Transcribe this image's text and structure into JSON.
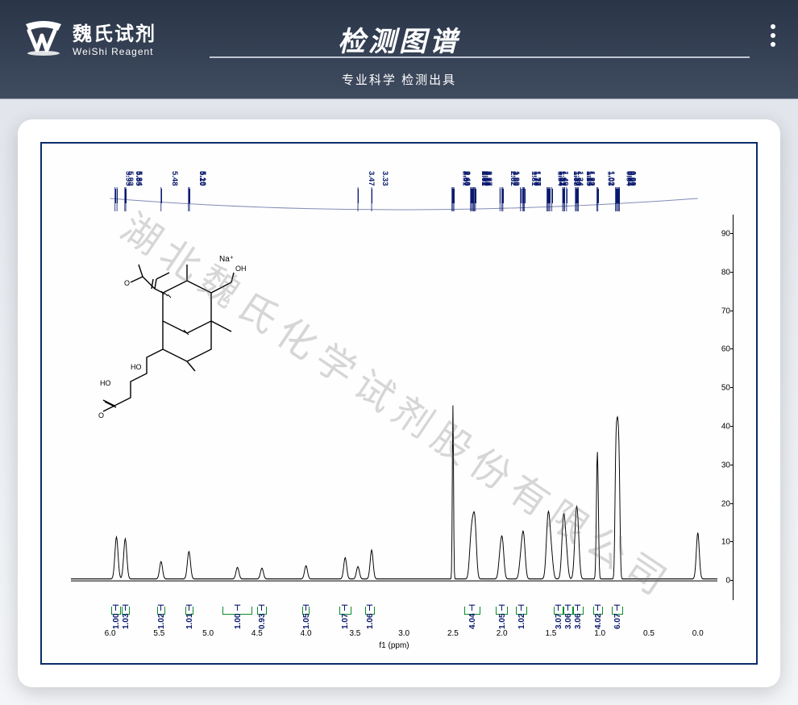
{
  "brand": {
    "cn": "魏氏试剂",
    "en": "WeiShi Reagent"
  },
  "header": {
    "title": "检测图谱",
    "subtitle": "专业科学  检测出具"
  },
  "watermark": "湖北魏氏化学试剂股份有限公司",
  "nmr": {
    "type": "1H-NMR",
    "x_label": "f1 (ppm)",
    "xlim_ppm": [
      6.4,
      -0.2
    ],
    "ylim": [
      -5,
      95
    ],
    "y_ticks": [
      0,
      10,
      20,
      30,
      40,
      50,
      60,
      70,
      80,
      90
    ],
    "x_ticks": [
      6.0,
      5.5,
      5.0,
      4.5,
      4.0,
      3.5,
      3.0,
      2.5,
      2.0,
      1.5,
      1.0,
      0.5,
      0.0
    ],
    "peak_labels_ppm": [
      5.95,
      5.93,
      5.85,
      5.84,
      5.48,
      5.2,
      5.19,
      3.47,
      3.33,
      2.51,
      2.5,
      2.5,
      2.49,
      2.32,
      2.31,
      2.3,
      2.3,
      2.29,
      2.28,
      2.27,
      2.02,
      2.02,
      2.0,
      1.99,
      1.81,
      1.79,
      1.78,
      1.77,
      1.54,
      1.53,
      1.53,
      1.52,
      1.51,
      1.49,
      1.38,
      1.37,
      1.37,
      1.36,
      1.36,
      1.34,
      1.25,
      1.25,
      1.24,
      1.23,
      1.22,
      1.22,
      1.03,
      1.02,
      0.84,
      0.83,
      0.82,
      0.82,
      0.81,
      0.8
    ],
    "integrals": [
      {
        "ppm_center": 5.94,
        "width_ppm": 0.1,
        "value": "1.00"
      },
      {
        "ppm_center": 5.84,
        "width_ppm": 0.08,
        "value": "1.03"
      },
      {
        "ppm_center": 5.48,
        "width_ppm": 0.08,
        "value": "1.02"
      },
      {
        "ppm_center": 5.19,
        "width_ppm": 0.08,
        "value": "1.01"
      },
      {
        "ppm_center": 4.7,
        "width_ppm": 0.3,
        "value": "1.00"
      },
      {
        "ppm_center": 4.45,
        "width_ppm": 0.1,
        "value": "0.93"
      },
      {
        "ppm_center": 4.0,
        "width_ppm": 0.08,
        "value": "1.05"
      },
      {
        "ppm_center": 3.6,
        "width_ppm": 0.12,
        "value": "1.07"
      },
      {
        "ppm_center": 3.35,
        "width_ppm": 0.1,
        "value": "1.06"
      },
      {
        "ppm_center": 2.3,
        "width_ppm": 0.16,
        "value": "4.04"
      },
      {
        "ppm_center": 2.0,
        "width_ppm": 0.12,
        "value": "1.05"
      },
      {
        "ppm_center": 1.8,
        "width_ppm": 0.12,
        "value": "1.02"
      },
      {
        "ppm_center": 1.42,
        "width_ppm": 0.1,
        "value": "3.07"
      },
      {
        "ppm_center": 1.32,
        "width_ppm": 0.1,
        "value": "3.06"
      },
      {
        "ppm_center": 1.22,
        "width_ppm": 0.1,
        "value": "3.06"
      },
      {
        "ppm_center": 1.02,
        "width_ppm": 0.1,
        "value": "4.02"
      },
      {
        "ppm_center": 0.82,
        "width_ppm": 0.12,
        "value": "6.07"
      }
    ],
    "spectrum_peaks": [
      {
        "ppm": 5.94,
        "h": 6
      },
      {
        "ppm": 5.93,
        "h": 5.5
      },
      {
        "ppm": 5.85,
        "h": 6
      },
      {
        "ppm": 5.84,
        "h": 5
      },
      {
        "ppm": 5.48,
        "h": 4.5
      },
      {
        "ppm": 5.2,
        "h": 4
      },
      {
        "ppm": 5.19,
        "h": 3.5
      },
      {
        "ppm": 4.7,
        "h": 3
      },
      {
        "ppm": 4.45,
        "h": 2.8
      },
      {
        "ppm": 4.0,
        "h": 3.4
      },
      {
        "ppm": 3.6,
        "h": 5.5
      },
      {
        "ppm": 3.47,
        "h": 3.2
      },
      {
        "ppm": 3.33,
        "h": 7.5
      },
      {
        "ppm": 2.5,
        "h": 45
      },
      {
        "ppm": 2.32,
        "h": 7
      },
      {
        "ppm": 2.3,
        "h": 9
      },
      {
        "ppm": 2.28,
        "h": 8
      },
      {
        "ppm": 2.27,
        "h": 6.5
      },
      {
        "ppm": 2.02,
        "h": 5
      },
      {
        "ppm": 2.0,
        "h": 5.5
      },
      {
        "ppm": 1.99,
        "h": 4.5
      },
      {
        "ppm": 1.81,
        "h": 4
      },
      {
        "ppm": 1.79,
        "h": 5
      },
      {
        "ppm": 1.78,
        "h": 4.5
      },
      {
        "ppm": 1.77,
        "h": 4
      },
      {
        "ppm": 1.54,
        "h": 5.5
      },
      {
        "ppm": 1.53,
        "h": 6
      },
      {
        "ppm": 1.52,
        "h": 5.5
      },
      {
        "ppm": 1.51,
        "h": 5
      },
      {
        "ppm": 1.49,
        "h": 4.5
      },
      {
        "ppm": 1.38,
        "h": 6
      },
      {
        "ppm": 1.37,
        "h": 6.5
      },
      {
        "ppm": 1.36,
        "h": 6
      },
      {
        "ppm": 1.34,
        "h": 5.5
      },
      {
        "ppm": 1.25,
        "h": 6
      },
      {
        "ppm": 1.24,
        "h": 6.5
      },
      {
        "ppm": 1.23,
        "h": 6
      },
      {
        "ppm": 1.22,
        "h": 5.5
      },
      {
        "ppm": 1.03,
        "h": 21
      },
      {
        "ppm": 1.02,
        "h": 19
      },
      {
        "ppm": 0.84,
        "h": 21
      },
      {
        "ppm": 0.83,
        "h": 20
      },
      {
        "ppm": 0.82,
        "h": 22
      },
      {
        "ppm": 0.81,
        "h": 20
      },
      {
        "ppm": 0.8,
        "h": 18
      },
      {
        "ppm": 0.0,
        "h": 12
      }
    ],
    "colors": {
      "background": "#ffffff",
      "frame_border": "#0a2c6b",
      "label_text": "#0a1a6e",
      "axis_text": "#000000",
      "integral_color": "#0a8a2a",
      "spectrum_line": "#000000",
      "watermark": "rgba(110,110,110,.28)"
    },
    "baseline_y": 0.5
  },
  "molecule": {
    "formula_label": "Na+",
    "groups": [
      "OH",
      "HO",
      "O",
      "O",
      "O",
      "OH"
    ]
  }
}
